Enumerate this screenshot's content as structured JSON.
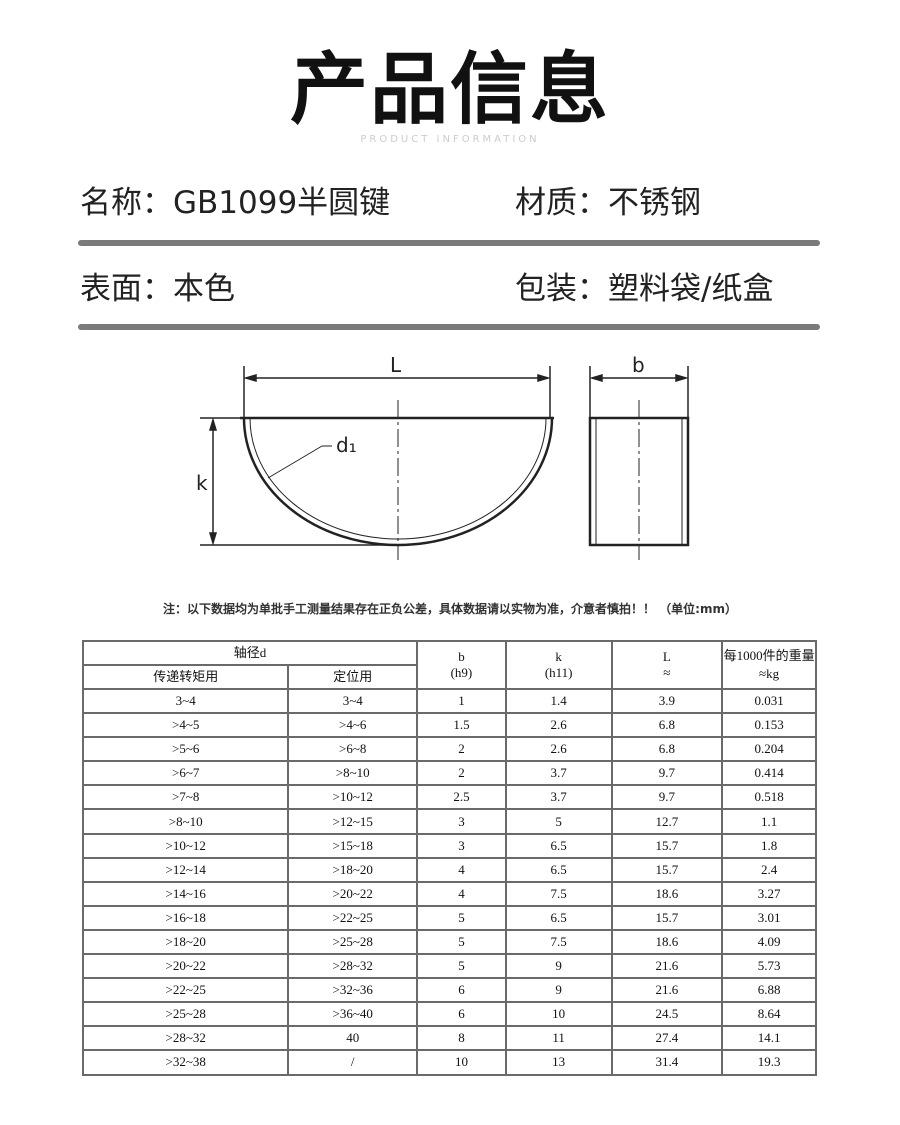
{
  "header": {
    "title": "产品信息",
    "subtitle": "PRODUCT INFORMATION"
  },
  "attributes": [
    {
      "text": "名称：GB1099半圆键"
    },
    {
      "text": "材质：不锈钢"
    },
    {
      "text": "表面：本色"
    },
    {
      "text": "包装：塑料袋/纸盒"
    }
  ],
  "drawing": {
    "L": "L",
    "k": "k",
    "b": "b",
    "d1": "d₁"
  },
  "note": "注：以下数据均为单批手工测量结果存在正负公差，具体数据请以实物为准，介意者慎拍！！ （单位:mm）",
  "table": {
    "group_header": "轴径d",
    "headers": {
      "torque": "传递转矩用",
      "position": "定位用",
      "b": "b",
      "b_tol": "(h9)",
      "k": "k",
      "k_tol": "(h11)",
      "L": "L",
      "L_approx": "≈",
      "weight": "每1000件的重量≈kg"
    },
    "rows": [
      [
        "3~4",
        "3~4",
        "1",
        "1.4",
        "3.9",
        "0.031"
      ],
      [
        ">4~5",
        ">4~6",
        "1.5",
        "2.6",
        "6.8",
        "0.153"
      ],
      [
        ">5~6",
        ">6~8",
        "2",
        "2.6",
        "6.8",
        "0.204"
      ],
      [
        ">6~7",
        ">8~10",
        "2",
        "3.7",
        "9.7",
        "0.414"
      ],
      [
        ">7~8",
        ">10~12",
        "2.5",
        "3.7",
        "9.7",
        "0.518"
      ],
      [
        ">8~10",
        ">12~15",
        "3",
        "5",
        "12.7",
        "1.1"
      ],
      [
        ">10~12",
        ">15~18",
        "3",
        "6.5",
        "15.7",
        "1.8"
      ],
      [
        ">12~14",
        ">18~20",
        "4",
        "6.5",
        "15.7",
        "2.4"
      ],
      [
        ">14~16",
        ">20~22",
        "4",
        "7.5",
        "18.6",
        "3.27"
      ],
      [
        ">16~18",
        ">22~25",
        "5",
        "6.5",
        "15.7",
        "3.01"
      ],
      [
        ">18~20",
        ">25~28",
        "5",
        "7.5",
        "18.6",
        "4.09"
      ],
      [
        ">20~22",
        ">28~32",
        "5",
        "9",
        "21.6",
        "5.73"
      ],
      [
        ">22~25",
        ">32~36",
        "6",
        "9",
        "21.6",
        "6.88"
      ],
      [
        ">25~28",
        ">36~40",
        "6",
        "10",
        "24.5",
        "8.64"
      ],
      [
        ">28~32",
        "40",
        "8",
        "11",
        "27.4",
        "14.1"
      ],
      [
        ">32~38",
        "/",
        "10",
        "13",
        "31.4",
        "19.3"
      ]
    ]
  }
}
